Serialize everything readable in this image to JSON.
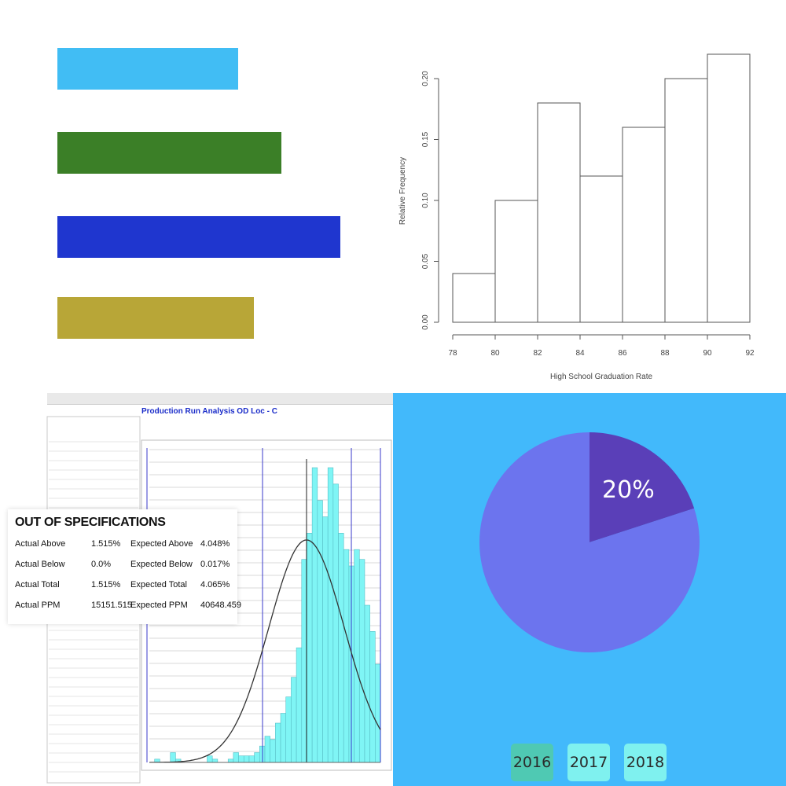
{
  "chart_data": [
    {
      "type": "bar",
      "orientation": "horizontal",
      "categories": [
        "",
        "",
        "",
        ""
      ],
      "values": [
        46,
        57,
        72,
        50
      ],
      "colors": [
        "#41bdf4",
        "#3b7f27",
        "#1f36cf",
        "#b8a637"
      ],
      "xlim": [
        0,
        100
      ],
      "axes_visible": false
    },
    {
      "type": "bar",
      "histogram": true,
      "title": "",
      "xlabel": "High School Graduation Rate",
      "ylabel": "Relative Frequency",
      "bins": [
        [
          78,
          80
        ],
        [
          80,
          82
        ],
        [
          82,
          84
        ],
        [
          84,
          86
        ],
        [
          86,
          88
        ],
        [
          88,
          90
        ],
        [
          90,
          92
        ]
      ],
      "values": [
        0.04,
        0.1,
        0.18,
        0.12,
        0.16,
        0.2,
        0.22
      ],
      "xticks": [
        "78",
        "80",
        "82",
        "84",
        "86",
        "88",
        "90",
        "92"
      ],
      "yticks": [
        "0.00",
        "0.05",
        "0.10",
        "0.15",
        "0.20"
      ],
      "xlim": [
        78,
        92
      ],
      "ylim": [
        0,
        0.22
      ]
    },
    {
      "type": "bar",
      "histogram": true,
      "title": "Production Run Analysis OD Loc - C",
      "values": [
        0,
        1,
        0,
        0,
        3,
        1,
        0,
        0,
        0,
        0,
        0,
        2,
        1,
        0,
        0,
        1,
        3,
        2,
        2,
        2,
        3,
        5,
        8,
        7,
        12,
        15,
        20,
        26,
        35,
        62,
        70,
        90,
        80,
        75,
        90,
        85,
        70,
        65,
        60,
        65,
        62,
        48,
        40,
        30
      ],
      "bar_color": "#7ff5f5",
      "curve": "normal",
      "out_of_specifications": {
        "heading": "OUT OF SPECIFICATIONS",
        "rows": [
          {
            "label": "Actual Above",
            "value": "1.515%",
            "exp_label": "Expected Above",
            "exp_value": "4.048%"
          },
          {
            "label": "Actual Below",
            "value": "0.0%",
            "exp_label": "Expected Below",
            "exp_value": "0.017%"
          },
          {
            "label": "Actual Total",
            "value": "1.515%",
            "exp_label": "Expected Total",
            "exp_value": "4.065%"
          },
          {
            "label": "Actual PPM",
            "value": "15151.515",
            "exp_label": "Expected PPM",
            "exp_value": "40648.459"
          }
        ]
      }
    },
    {
      "type": "pie",
      "values": [
        20,
        80
      ],
      "labels": [
        "20%",
        ""
      ],
      "colors": [
        "#5a3fb8",
        "#6c74ee"
      ],
      "background": "#42b9fb",
      "years": [
        "2016",
        "2017",
        "2018"
      ],
      "selected_year": "2016"
    }
  ],
  "year_button_colors": {
    "selected": "#4fc9b3",
    "normal": "#7ff1ef"
  }
}
